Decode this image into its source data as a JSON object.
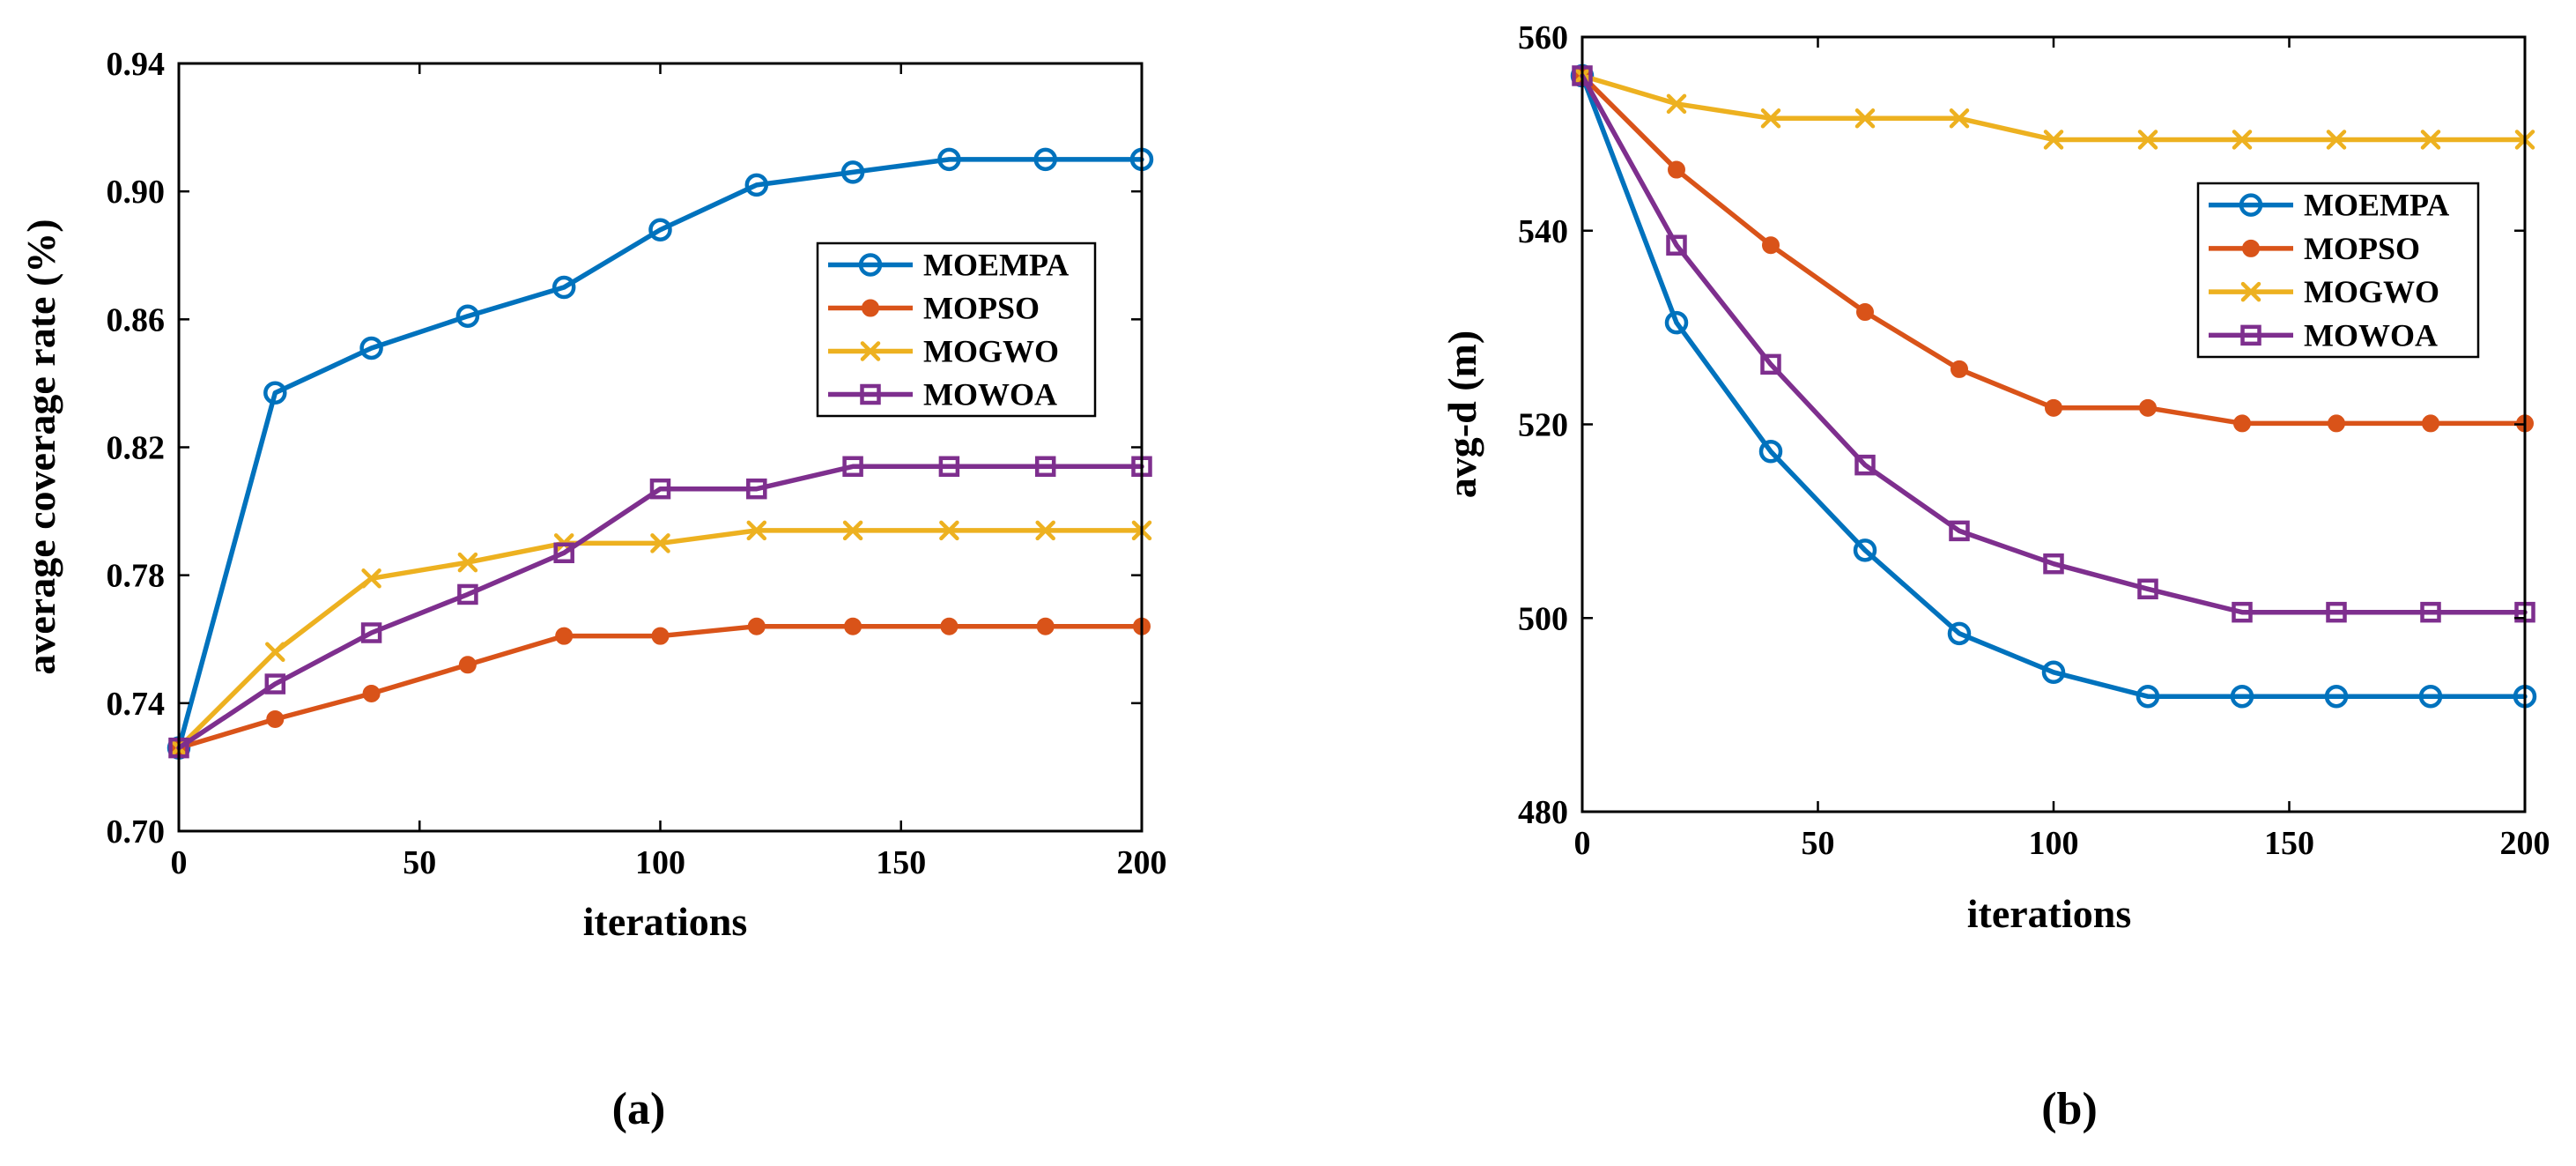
{
  "chart_data": [
    {
      "type": "line",
      "caption": "(a)",
      "title": "",
      "xlabel": "iterations",
      "ylabel": "average coverage rate (%)",
      "xlim": [
        0,
        200
      ],
      "ylim": [
        0.7,
        0.94
      ],
      "xticks": [
        0,
        50,
        100,
        150,
        200
      ],
      "xtick_labels": [
        "0",
        "50",
        "100",
        "150",
        "200"
      ],
      "yticks": [
        0.7,
        0.74,
        0.78,
        0.82,
        0.86,
        0.9,
        0.94
      ],
      "ytick_labels": [
        "0.70",
        "0.74",
        "0.78",
        "0.82",
        "0.86",
        "0.90",
        "0.94"
      ],
      "grid": false,
      "legend_position": "center-right",
      "x": [
        0,
        20,
        40,
        60,
        80,
        100,
        120,
        140,
        160,
        180,
        200
      ],
      "series": [
        {
          "name": "MOEMPA",
          "color": "#0072BD",
          "marker": "circle",
          "values": [
            0.726,
            0.837,
            0.851,
            0.861,
            0.87,
            0.888,
            0.902,
            0.906,
            0.91,
            0.91,
            0.91
          ]
        },
        {
          "name": "MOPSO",
          "color": "#D95319",
          "marker": "filled-circle",
          "values": [
            0.726,
            0.735,
            0.743,
            0.752,
            0.761,
            0.761,
            0.764,
            0.764,
            0.764,
            0.764,
            0.764
          ]
        },
        {
          "name": "MOGWO",
          "color": "#EDB120",
          "marker": "x",
          "values": [
            0.726,
            0.756,
            0.779,
            0.784,
            0.79,
            0.79,
            0.794,
            0.794,
            0.794,
            0.794,
            0.794
          ]
        },
        {
          "name": "MOWOA",
          "color": "#7E2F8E",
          "marker": "square",
          "values": [
            0.726,
            0.746,
            0.762,
            0.774,
            0.787,
            0.807,
            0.807,
            0.814,
            0.814,
            0.814,
            0.814
          ]
        }
      ]
    },
    {
      "type": "line",
      "caption": "(b)",
      "title": "",
      "xlabel": "iterations",
      "ylabel": "avg-d (m)",
      "xlim": [
        0,
        200
      ],
      "ylim": [
        480,
        560
      ],
      "xticks": [
        0,
        50,
        100,
        150,
        200
      ],
      "xtick_labels": [
        "0",
        "50",
        "100",
        "150",
        "200"
      ],
      "yticks": [
        480,
        500,
        520,
        540,
        560
      ],
      "ytick_labels": [
        "480",
        "500",
        "520",
        "540",
        "560"
      ],
      "grid": false,
      "legend_position": "top-right",
      "x": [
        0,
        20,
        40,
        60,
        80,
        100,
        120,
        140,
        160,
        180,
        200
      ],
      "series": [
        {
          "name": "MOEMPA",
          "color": "#0072BD",
          "marker": "circle",
          "values": [
            556,
            530.5,
            517.2,
            507,
            498.4,
            494.4,
            491.9,
            491.9,
            491.9,
            491.9,
            491.9
          ]
        },
        {
          "name": "MOPSO",
          "color": "#D95319",
          "marker": "filled-circle",
          "values": [
            556,
            546.3,
            538.5,
            531.6,
            525.7,
            521.7,
            521.7,
            520.1,
            520.1,
            520.1,
            520.1
          ]
        },
        {
          "name": "MOGWO",
          "color": "#EDB120",
          "marker": "x",
          "values": [
            556,
            553.1,
            551.6,
            551.6,
            551.6,
            549.4,
            549.4,
            549.4,
            549.4,
            549.4,
            549.4
          ]
        },
        {
          "name": "MOWOA",
          "color": "#7E2F8E",
          "marker": "square",
          "values": [
            556,
            538.5,
            526.2,
            515.8,
            509,
            505.6,
            503,
            500.6,
            500.6,
            500.6,
            500.6
          ]
        }
      ]
    }
  ]
}
